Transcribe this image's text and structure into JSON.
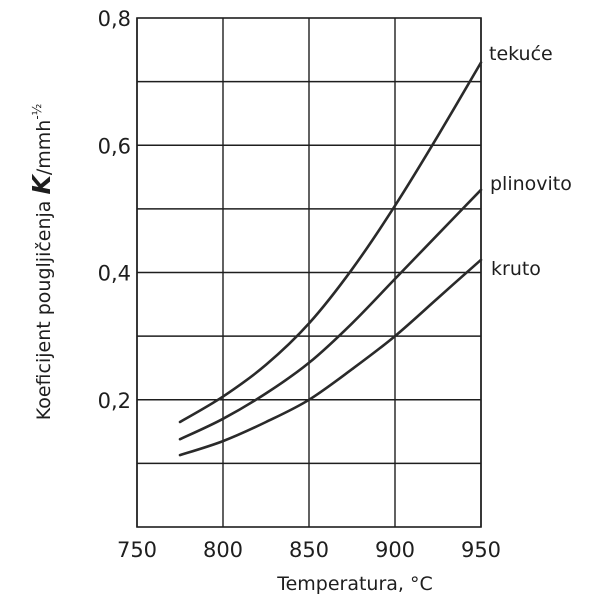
{
  "chart_data": {
    "type": "line",
    "xlabel": "Temperatura, ",
    "xlabel_unit": "°C",
    "ylabel_prefix": "Koeficijent  pougljičenja  ",
    "ylabel_symbol": "K",
    "ylabel_unit": "/mmh",
    "ylabel_exp": "-½",
    "xlim": [
      750,
      950
    ],
    "ylim": [
      0.0,
      0.8
    ],
    "x_ticks": [
      750,
      800,
      850,
      900,
      950
    ],
    "x_tick_labels": [
      "750",
      "800",
      "850",
      "900",
      "950"
    ],
    "y_ticks": [
      0.2,
      0.4,
      0.6,
      0.8
    ],
    "y_tick_labels": [
      "0,2",
      "0,4",
      "0,6",
      "0,8"
    ],
    "grid": true,
    "series": [
      {
        "name": "tekuće",
        "x": [
          775,
          800,
          825,
          850,
          875,
          900,
          925,
          950
        ],
        "y": [
          0.165,
          0.205,
          0.255,
          0.32,
          0.405,
          0.505,
          0.615,
          0.73
        ]
      },
      {
        "name": "plinovito",
        "x": [
          775,
          800,
          825,
          850,
          875,
          900,
          925,
          950
        ],
        "y": [
          0.138,
          0.17,
          0.21,
          0.258,
          0.32,
          0.39,
          0.46,
          0.53
        ]
      },
      {
        "name": "kruto",
        "x": [
          775,
          800,
          825,
          850,
          875,
          900,
          925,
          950
        ],
        "y": [
          0.113,
          0.135,
          0.165,
          0.2,
          0.248,
          0.3,
          0.36,
          0.42
        ]
      }
    ]
  }
}
